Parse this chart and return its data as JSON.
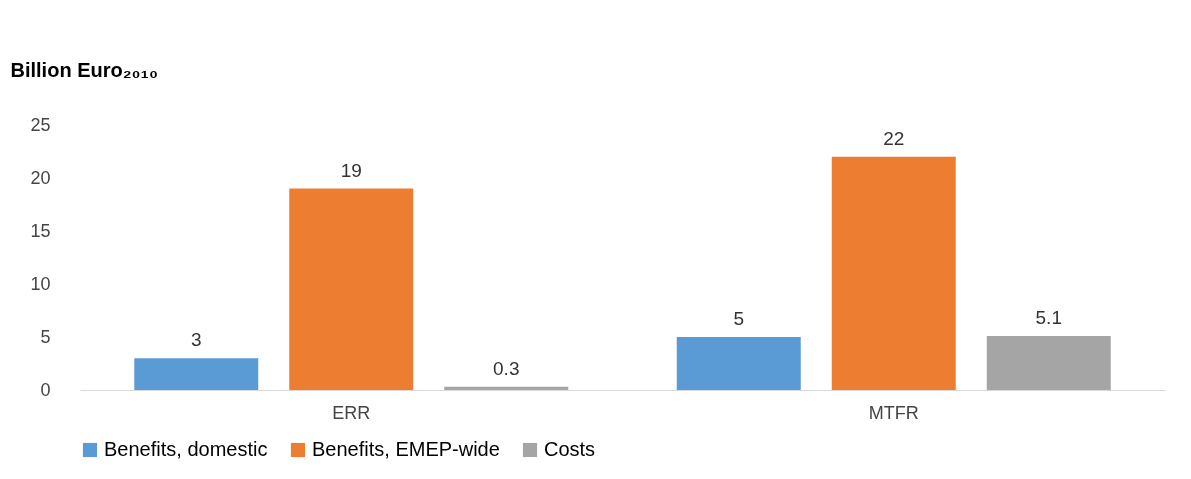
{
  "chart_data": {
    "type": "bar",
    "ylabel": "Billion Euro₂₀₁₀",
    "categories": [
      "ERR",
      "MTFR"
    ],
    "series": [
      {
        "name": "Benefits, domestic",
        "color": "#5b9bd5",
        "values": [
          3,
          5
        ]
      },
      {
        "name": "Benefits, EMEP-wide",
        "color": "#ed7d31",
        "values": [
          19,
          22
        ]
      },
      {
        "name": "Costs",
        "color": "#a5a5a5",
        "values": [
          0.3,
          5.1
        ]
      }
    ],
    "ylim": [
      0,
      25
    ],
    "yticks": [
      0,
      5,
      10,
      15,
      20,
      25
    ],
    "grid": false,
    "legend": "bottom",
    "data_labels": true
  }
}
